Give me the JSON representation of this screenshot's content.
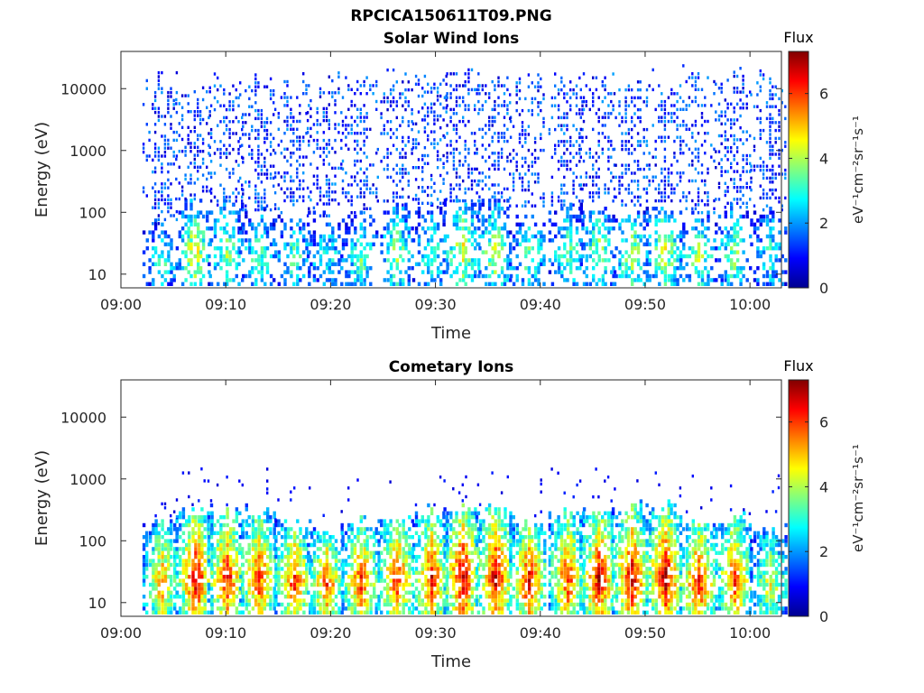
{
  "figure": {
    "title": "RPCICA150611T09.PNG"
  },
  "chart_data": [
    {
      "type": "heatmap",
      "title": "Solar Wind Ions",
      "xlabel": "Time",
      "ylabel": "Energy (eV)",
      "x_ticks": [
        "09:00",
        "09:10",
        "09:20",
        "09:30",
        "09:40",
        "09:50",
        "10:00"
      ],
      "x_range_minutes": [
        0,
        63
      ],
      "y_ticks": [
        "10",
        "100",
        "1000",
        "10000"
      ],
      "y_scale": "log",
      "ylim": [
        6,
        40000
      ],
      "colorbar": {
        "title": "Flux",
        "label": "eV⁻¹cm⁻²sr⁻¹s⁻¹",
        "ticks": [
          "0",
          "2",
          "4",
          "6"
        ],
        "range": [
          0,
          7.3
        ],
        "colormap": "jet"
      },
      "bursts": [
        {
          "t": 3.8,
          "peak": 3.2,
          "low_energy_max": 60,
          "high_energy_max": 15000
        },
        {
          "t": 6.9,
          "peak": 4.6,
          "low_energy_max": 150,
          "high_energy_max": 10000
        },
        {
          "t": 10.0,
          "peak": 3.8,
          "low_energy_max": 120,
          "high_energy_max": 12000
        },
        {
          "t": 13.0,
          "peak": 3.6,
          "low_energy_max": 100,
          "high_energy_max": 15000
        },
        {
          "t": 16.4,
          "peak": 3.4,
          "low_energy_max": 90,
          "high_energy_max": 12000
        },
        {
          "t": 19.5,
          "peak": 3.2,
          "low_energy_max": 80,
          "high_energy_max": 12000
        },
        {
          "t": 22.8,
          "peak": 3.6,
          "low_energy_max": 90,
          "high_energy_max": 15000
        },
        {
          "t": 26.2,
          "peak": 4.0,
          "low_energy_max": 120,
          "high_energy_max": 15000
        },
        {
          "t": 29.5,
          "peak": 3.4,
          "low_energy_max": 110,
          "high_energy_max": 12000
        },
        {
          "t": 32.5,
          "peak": 4.6,
          "low_energy_max": 140,
          "high_energy_max": 15000
        },
        {
          "t": 35.6,
          "peak": 4.4,
          "low_energy_max": 140,
          "high_energy_max": 15000
        },
        {
          "t": 38.8,
          "peak": 3.6,
          "low_energy_max": 100,
          "high_energy_max": 15000
        },
        {
          "t": 42.5,
          "peak": 3.6,
          "low_energy_max": 120,
          "high_energy_max": 15000
        },
        {
          "t": 45.5,
          "peak": 4.0,
          "low_energy_max": 140,
          "high_energy_max": 15000
        },
        {
          "t": 48.6,
          "peak": 4.2,
          "low_energy_max": 120,
          "high_energy_max": 15000
        },
        {
          "t": 51.8,
          "peak": 4.4,
          "low_energy_max": 140,
          "high_energy_max": 15000
        },
        {
          "t": 55.0,
          "peak": 4.0,
          "low_energy_max": 90,
          "high_energy_max": 15000
        },
        {
          "t": 58.4,
          "peak": 3.8,
          "low_energy_max": 110,
          "high_energy_max": 15000
        },
        {
          "t": 61.8,
          "peak": 3.0,
          "low_energy_max": 100,
          "high_energy_max": 15000
        }
      ]
    },
    {
      "type": "heatmap",
      "title": "Cometary Ions",
      "xlabel": "Time",
      "ylabel": "Energy (eV)",
      "x_ticks": [
        "09:00",
        "09:10",
        "09:20",
        "09:30",
        "09:40",
        "09:50",
        "10:00"
      ],
      "x_range_minutes": [
        0,
        63
      ],
      "y_ticks": [
        "10",
        "100",
        "1000",
        "10000"
      ],
      "y_scale": "log",
      "ylim": [
        6,
        40000
      ],
      "colorbar": {
        "title": "Flux",
        "label": "eV⁻¹cm⁻²sr⁻¹s⁻¹",
        "ticks": [
          "0",
          "2",
          "4",
          "6"
        ],
        "range": [
          0,
          7.3
        ],
        "colormap": "jet"
      },
      "bursts": [
        {
          "t": 3.8,
          "peak": 5.4,
          "low_energy_max": 200,
          "high_energy_max": 800
        },
        {
          "t": 7.0,
          "peak": 6.8,
          "low_energy_max": 350,
          "high_energy_max": 2000
        },
        {
          "t": 10.0,
          "peak": 6.4,
          "low_energy_max": 300,
          "high_energy_max": 1500
        },
        {
          "t": 13.0,
          "peak": 6.2,
          "low_energy_max": 300,
          "high_energy_max": 1200
        },
        {
          "t": 16.4,
          "peak": 6.2,
          "low_energy_max": 200,
          "high_energy_max": 1200
        },
        {
          "t": 19.5,
          "peak": 6.0,
          "low_energy_max": 150,
          "high_energy_max": 800
        },
        {
          "t": 22.8,
          "peak": 6.2,
          "low_energy_max": 200,
          "high_energy_max": 1200
        },
        {
          "t": 26.2,
          "peak": 6.4,
          "low_energy_max": 250,
          "high_energy_max": 1200
        },
        {
          "t": 29.5,
          "peak": 6.4,
          "low_energy_max": 300,
          "high_energy_max": 1500
        },
        {
          "t": 32.5,
          "peak": 7.0,
          "low_energy_max": 350,
          "high_energy_max": 2000
        },
        {
          "t": 35.6,
          "peak": 6.8,
          "low_energy_max": 350,
          "high_energy_max": 1500
        },
        {
          "t": 38.8,
          "peak": 6.6,
          "low_energy_max": 200,
          "high_energy_max": 1000
        },
        {
          "t": 42.5,
          "peak": 6.2,
          "low_energy_max": 300,
          "high_energy_max": 1500
        },
        {
          "t": 45.5,
          "peak": 6.8,
          "low_energy_max": 300,
          "high_energy_max": 1500
        },
        {
          "t": 48.6,
          "peak": 6.8,
          "low_energy_max": 350,
          "high_energy_max": 2000
        },
        {
          "t": 51.8,
          "peak": 7.0,
          "low_energy_max": 350,
          "high_energy_max": 2000
        },
        {
          "t": 55.0,
          "peak": 6.6,
          "low_energy_max": 200,
          "high_energy_max": 1200
        },
        {
          "t": 58.4,
          "peak": 6.2,
          "low_energy_max": 250,
          "high_energy_max": 1200
        },
        {
          "t": 61.8,
          "peak": 4.6,
          "low_energy_max": 150,
          "high_energy_max": 1000
        }
      ]
    }
  ]
}
